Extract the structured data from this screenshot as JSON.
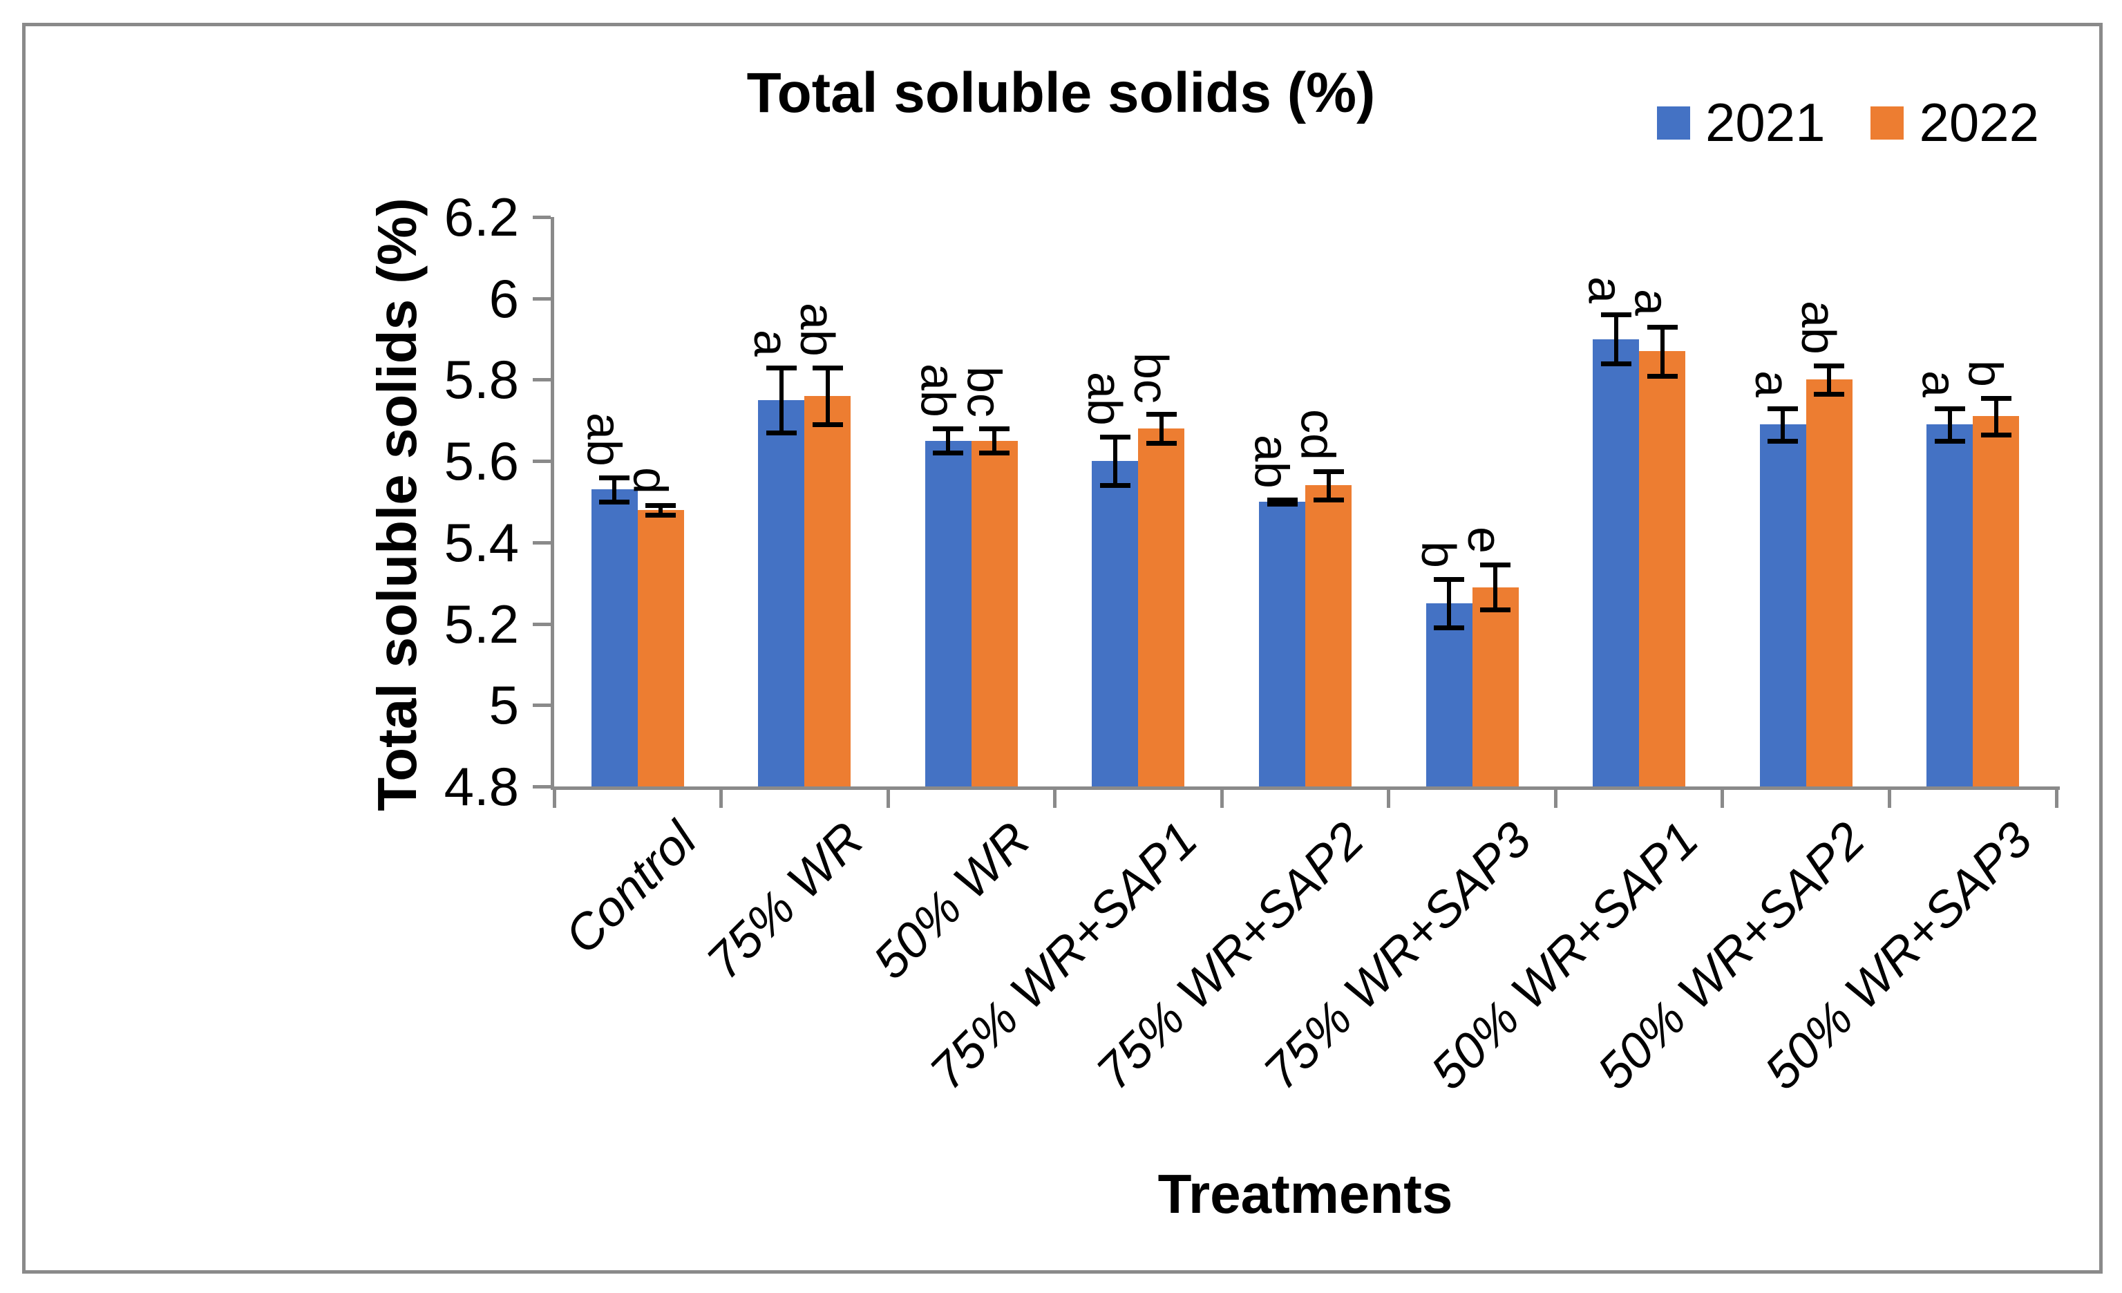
{
  "title": "Total soluble solids (%)",
  "legend": {
    "items": [
      {
        "label": "2021",
        "color": "#4472C4"
      },
      {
        "label": "2022",
        "color": "#ED7D31"
      }
    ]
  },
  "y_axis": {
    "title": "Total soluble solids (%)",
    "tick_labels": [
      "4.8",
      "5",
      "5.2",
      "5.4",
      "5.6",
      "5.8",
      "6",
      "6.2"
    ],
    "tick_values": [
      4.8,
      5.0,
      5.2,
      5.4,
      5.6,
      5.8,
      6.0,
      6.2
    ]
  },
  "x_axis": {
    "title": "Treatments"
  },
  "chart_data": {
    "type": "bar",
    "title": "Total soluble solids (%)",
    "xlabel": "Treatments",
    "ylabel": "Total soluble solids (%)",
    "ylim": [
      4.8,
      6.2
    ],
    "grid": false,
    "legend_position": "top-right",
    "error_bars": true,
    "categories": [
      "Control",
      "75% WR",
      "50% WR",
      "75% WR+SAP1",
      "75% WR+SAP2",
      "75% WR+SAP3",
      "50% WR+SAP1",
      "50% WR+SAP2",
      "50% WR+SAP3"
    ],
    "series": [
      {
        "name": "2021",
        "color": "#4472C4",
        "values": [
          5.53,
          5.75,
          5.65,
          5.6,
          5.5,
          5.25,
          5.9,
          5.69,
          5.69
        ],
        "errors": [
          0.03,
          0.08,
          0.03,
          0.06,
          0.005,
          0.06,
          0.06,
          0.04,
          0.04
        ],
        "letters": [
          "ab",
          "a",
          "ab",
          "ab",
          "ab",
          "b",
          "a",
          "a",
          "a"
        ]
      },
      {
        "name": "2022",
        "color": "#ED7D31",
        "values": [
          5.48,
          5.76,
          5.65,
          5.68,
          5.54,
          5.29,
          5.87,
          5.8,
          5.71
        ],
        "errors": [
          0.012,
          0.07,
          0.03,
          0.035,
          0.035,
          0.055,
          0.06,
          0.035,
          0.045
        ],
        "letters": [
          "d",
          "ab",
          "bc",
          "bc",
          "cd",
          "e",
          "a",
          "ab",
          "b"
        ]
      }
    ]
  }
}
